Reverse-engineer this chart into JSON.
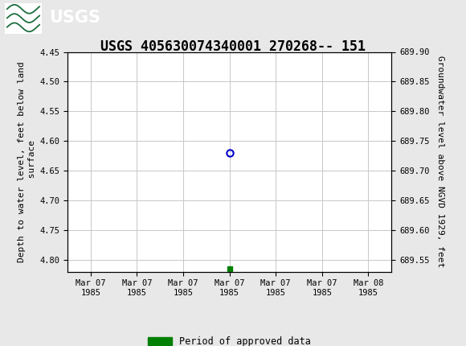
{
  "title": "USGS 405630074340001 270268-- 151",
  "header_color": "#1c6e3d",
  "bg_color": "#e8e8e8",
  "plot_bg_color": "#ffffff",
  "grid_color": "#c8c8c8",
  "left_ylabel": "Depth to water level, feet below land\n surface",
  "right_ylabel": "Groundwater level above NGVD 1929, feet",
  "ylim_left_top": 4.45,
  "ylim_left_bottom": 4.82,
  "ylim_right_top": 689.9,
  "ylim_right_bottom": 689.53,
  "yticks_left": [
    4.45,
    4.5,
    4.55,
    4.6,
    4.65,
    4.7,
    4.75,
    4.8
  ],
  "yticks_right": [
    689.9,
    689.85,
    689.8,
    689.75,
    689.7,
    689.65,
    689.6,
    689.55
  ],
  "x_dates": [
    "Mar 07\n1985",
    "Mar 07\n1985",
    "Mar 07\n1985",
    "Mar 07\n1985",
    "Mar 07\n1985",
    "Mar 07\n1985",
    "Mar 08\n1985"
  ],
  "x_numeric": [
    0,
    1,
    2,
    3,
    4,
    5,
    6
  ],
  "xlim": [
    -0.5,
    6.5
  ],
  "data_point_x": 3,
  "data_point_y": 4.62,
  "approved_x": 3,
  "approved_y": 4.815,
  "point_color": "#0000cc",
  "approved_color": "#008000",
  "legend_label": "Period of approved data",
  "title_fontsize": 12,
  "axis_label_fontsize": 8,
  "tick_fontsize": 7.5
}
